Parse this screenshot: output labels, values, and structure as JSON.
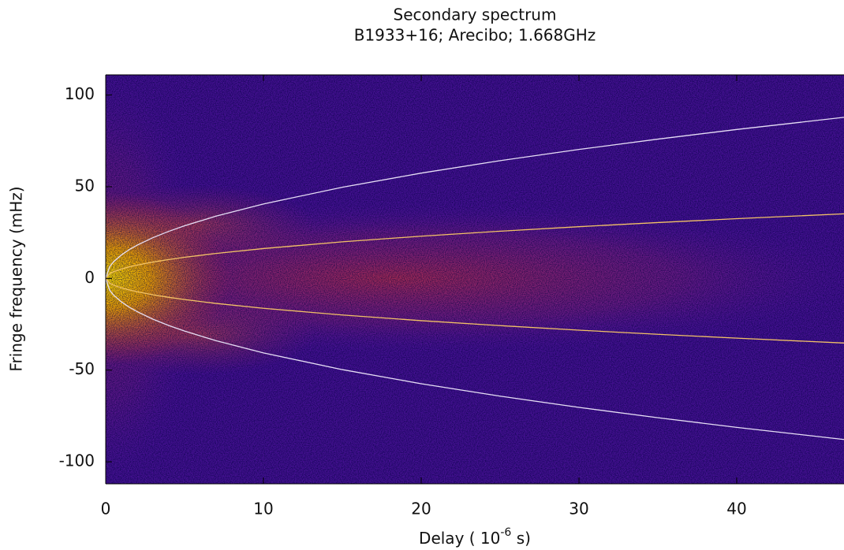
{
  "chart_data": {
    "type": "arcs",
    "title": [
      "Secondary spectrum",
      "B1933+16; Arecibo; 1.668GHz"
    ],
    "xlabel": [
      "Delay ( 10",
      "-6",
      " s)"
    ],
    "ylabel": "Fringe frequency (mHz)",
    "xlim": [
      0,
      46.8
    ],
    "ylim": [
      -112,
      111
    ],
    "xticks": [
      0,
      10,
      20,
      30,
      40
    ],
    "yticks": [
      -100,
      -50,
      0,
      50,
      100
    ],
    "x": [
      0,
      0.25,
      0.5,
      1,
      1.5,
      2,
      3,
      4,
      5,
      7,
      10,
      15,
      20,
      25,
      30,
      35,
      40,
      46.8
    ],
    "series": [
      {
        "color": "#e6def5",
        "values": [
          0,
          6.42,
          9.08,
          12.84,
          15.73,
          18.16,
          22.24,
          25.68,
          28.71,
          33.97,
          40.6,
          49.73,
          57.42,
          64.2,
          70.33,
          75.96,
          81.21,
          87.84
        ]
      },
      {
        "color": "#e6def5",
        "values": [
          0,
          -6.42,
          -9.08,
          -12.84,
          -15.73,
          -18.16,
          -22.24,
          -25.68,
          -28.71,
          -33.97,
          -40.6,
          -49.73,
          -57.42,
          -64.2,
          -70.33,
          -75.96,
          -81.21,
          -87.84
        ]
      },
      {
        "color": "#f2c266",
        "values": [
          0,
          2.58,
          3.64,
          5.15,
          6.31,
          7.28,
          8.92,
          10.3,
          11.52,
          13.63,
          16.29,
          19.95,
          23.03,
          25.75,
          28.21,
          30.47,
          32.57,
          35.23
        ]
      },
      {
        "color": "#f2c266",
        "values": [
          0,
          -2.58,
          -3.64,
          -5.15,
          -6.31,
          -7.28,
          -8.92,
          -10.3,
          -11.52,
          -13.63,
          -16.29,
          -19.95,
          -23.03,
          -25.75,
          -28.21,
          -30.47,
          -32.57,
          -35.23
        ]
      }
    ]
  }
}
